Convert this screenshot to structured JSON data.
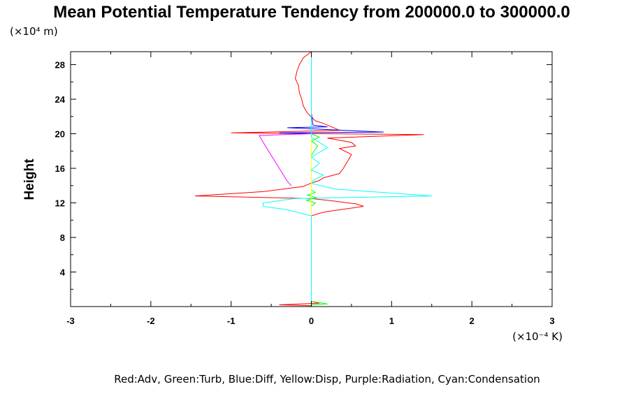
{
  "chart_data": {
    "type": "line",
    "title": "Mean Potential Temperature Tendency from 200000.0 to 300000.0",
    "ylabel": "Height",
    "xlabel": "",
    "y_unit": "(×10⁴ m)",
    "x_unit": "(×10⁻⁴ K)",
    "xlim": [
      -3,
      3
    ],
    "ylim": [
      0,
      29.5
    ],
    "x_ticks": [
      -3,
      -2,
      -1,
      0,
      1,
      2,
      3
    ],
    "x_tick_labels": [
      "-3",
      "-2",
      "-1",
      "0",
      "1",
      "2",
      "3"
    ],
    "y_ticks": [
      4,
      8,
      12,
      16,
      20,
      24,
      28
    ],
    "y_tick_labels": [
      "4",
      "8",
      "12",
      "16",
      "20",
      "24",
      "28"
    ],
    "grid": false,
    "legend_caption": "Red:Adv, Green:Turb, Blue:Diff, Yellow:Disp, Purple:Radiation, Cyan:Condensation",
    "series": [
      {
        "color": "#ff0000",
        "points": [
          [
            0,
            0.1
          ],
          [
            -0.4,
            0.2
          ],
          [
            0.1,
            0.4
          ],
          [
            0,
            0.6
          ],
          [
            0,
            10.5
          ],
          [
            0.1,
            10.8
          ],
          [
            0.2,
            11.0
          ],
          [
            0.65,
            11.6
          ],
          [
            0.55,
            11.9
          ],
          [
            0.45,
            12.0
          ],
          [
            0.3,
            12.2
          ],
          [
            0,
            12.5
          ],
          [
            -1.45,
            12.8
          ],
          [
            -0.6,
            13.3
          ],
          [
            -0.1,
            13.9
          ],
          [
            0,
            14.3
          ],
          [
            0.1,
            14.6
          ],
          [
            0.15,
            14.9
          ],
          [
            0.35,
            15.4
          ],
          [
            0.4,
            16.0
          ],
          [
            0.45,
            16.8
          ],
          [
            0.5,
            17.6
          ],
          [
            0.35,
            18.3
          ],
          [
            0.55,
            18.6
          ],
          [
            0.5,
            19.0
          ],
          [
            0.2,
            19.5
          ],
          [
            1.4,
            19.9
          ],
          [
            -1.0,
            20.1
          ],
          [
            0.35,
            20.4
          ],
          [
            0.25,
            20.8
          ],
          [
            0.15,
            21.2
          ],
          [
            0.05,
            21.5
          ],
          [
            -0.05,
            22.4
          ],
          [
            -0.1,
            23.2
          ],
          [
            -0.12,
            24.0
          ],
          [
            -0.15,
            24.8
          ],
          [
            -0.16,
            25.6
          ],
          [
            -0.2,
            26.4
          ],
          [
            -0.18,
            27.2
          ],
          [
            -0.15,
            28.0
          ],
          [
            -0.1,
            28.8
          ],
          [
            0,
            29.5
          ]
        ]
      },
      {
        "color": "#00ff00",
        "points": [
          [
            0,
            0.2
          ],
          [
            0.2,
            0.3
          ],
          [
            0,
            0.6
          ],
          [
            0,
            11.6
          ],
          [
            0.05,
            12.0
          ],
          [
            -0.06,
            12.3
          ],
          [
            0.06,
            12.6
          ],
          [
            -0.05,
            12.9
          ],
          [
            0.05,
            13.2
          ],
          [
            0,
            13.5
          ],
          [
            0,
            17.5
          ],
          [
            0.08,
            18.6
          ],
          [
            0,
            19.2
          ],
          [
            0.1,
            19.6
          ],
          [
            0,
            20.0
          ]
        ]
      },
      {
        "color": "#0000ff",
        "points": [
          [
            0,
            0.5
          ],
          [
            0,
            20.0
          ],
          [
            -0.4,
            20.1
          ],
          [
            0.9,
            20.2
          ],
          [
            0.4,
            20.4
          ],
          [
            -0.3,
            20.7
          ],
          [
            0.2,
            20.8
          ],
          [
            0.02,
            21.0
          ],
          [
            0,
            22.4
          ],
          [
            0,
            29.5
          ]
        ]
      },
      {
        "color": "#ffff00",
        "points": [
          [
            0,
            0.5
          ],
          [
            0,
            29.5
          ]
        ]
      },
      {
        "color": "#ff00ff",
        "points": [
          [
            -0.25,
            14.0
          ],
          [
            -0.3,
            14.5
          ],
          [
            -0.4,
            16.0
          ],
          [
            -0.5,
            17.5
          ],
          [
            -0.6,
            19.0
          ],
          [
            -0.65,
            19.8
          ],
          [
            0,
            20.0
          ]
        ]
      },
      {
        "color": "#00ffff",
        "points": [
          [
            0,
            0.5
          ],
          [
            0,
            10.5
          ],
          [
            -0.3,
            11.2
          ],
          [
            -0.6,
            11.6
          ],
          [
            -0.6,
            12.0
          ],
          [
            -0.2,
            12.5
          ],
          [
            1.5,
            12.8
          ],
          [
            0.3,
            13.6
          ],
          [
            0.02,
            14.2
          ],
          [
            0.02,
            14.6
          ],
          [
            0.15,
            15.2
          ],
          [
            0,
            15.8
          ],
          [
            0.1,
            16.6
          ],
          [
            0,
            17.3
          ],
          [
            0.2,
            18.4
          ],
          [
            0,
            19.6
          ],
          [
            0,
            29.5
          ]
        ]
      }
    ]
  }
}
